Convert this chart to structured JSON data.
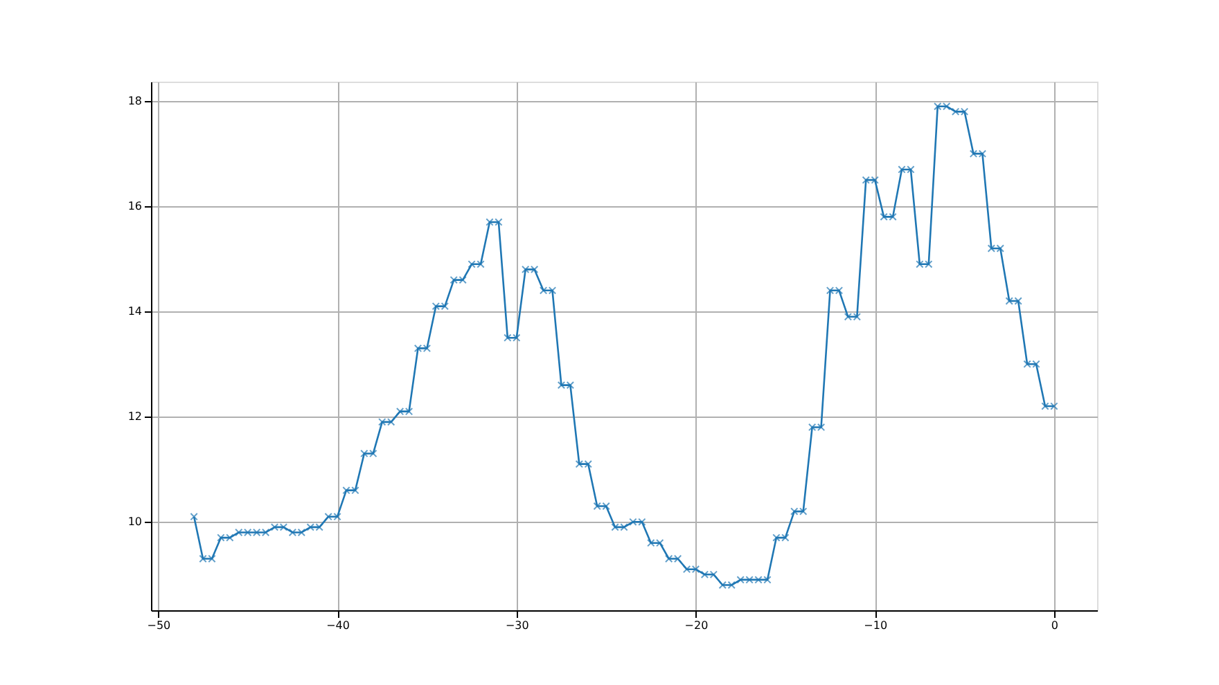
{
  "chart_data": {
    "type": "line",
    "x": [
      -48,
      -47.5,
      -47,
      -46.5,
      -46,
      -45.5,
      -45,
      -44.5,
      -44,
      -43.5,
      -43,
      -42.5,
      -42,
      -41.5,
      -41,
      -40.5,
      -40,
      -39.5,
      -39,
      -38.5,
      -38,
      -37.5,
      -37,
      -36.5,
      -36,
      -35.5,
      -35,
      -34.5,
      -34,
      -33.5,
      -33,
      -32.5,
      -32,
      -31.5,
      -31,
      -30.5,
      -30,
      -29.5,
      -29,
      -28.5,
      -28,
      -27.5,
      -27,
      -26.5,
      -26,
      -25.5,
      -25,
      -24.5,
      -24,
      -23.5,
      -23,
      -22.5,
      -22,
      -21.5,
      -21,
      -20.5,
      -20,
      -19.5,
      -19,
      -18.5,
      -18,
      -17.5,
      -17,
      -16.5,
      -16,
      -15.5,
      -15,
      -14.5,
      -14,
      -13.5,
      -13,
      -12.5,
      -12,
      -11.5,
      -11,
      -10.5,
      -10,
      -9.5,
      -9,
      -8.5,
      -8,
      -7.5,
      -7,
      -6.5,
      -6,
      -5.5,
      -5,
      -4.5,
      -4,
      -3.5,
      -3,
      -2.5,
      -2,
      -1.5,
      -1,
      -0.5,
      0
    ],
    "series": [
      {
        "color": "#1f77b4",
        "values": [
          10.1,
          9.3,
          9.3,
          9.7,
          9.7,
          9.8,
          9.8,
          9.8,
          9.8,
          9.9,
          9.9,
          9.8,
          9.8,
          9.9,
          9.9,
          10.1,
          10.1,
          10.6,
          10.6,
          11.3,
          11.3,
          11.9,
          11.9,
          12.1,
          12.1,
          13.3,
          13.3,
          14.1,
          14.1,
          14.6,
          14.6,
          14.9,
          14.9,
          15.7,
          15.7,
          13.5,
          13.5,
          14.8,
          14.8,
          14.4,
          14.4,
          12.6,
          12.6,
          11.1,
          11.1,
          10.3,
          10.3,
          9.9,
          9.9,
          10.0,
          10.0,
          9.6,
          9.6,
          9.3,
          9.3,
          9.1,
          9.1,
          9.0,
          9.0,
          8.8,
          8.8,
          8.9,
          8.9,
          8.9,
          8.9,
          9.7,
          9.7,
          10.2,
          10.2,
          11.8,
          11.8,
          14.4,
          14.4,
          13.9,
          13.9,
          16.5,
          16.5,
          15.8,
          15.8,
          16.7,
          16.7,
          14.9,
          14.9,
          17.9,
          17.9,
          17.8,
          17.8,
          17.0,
          17.0,
          15.2,
          15.2,
          14.2,
          14.2,
          13.0,
          13.0,
          12.2,
          12.2
        ]
      }
    ],
    "xlim": [
      -50.4,
      2.4
    ],
    "ylim": [
      8.32,
      18.37
    ],
    "xticks": [
      -50,
      -40,
      -30,
      -20,
      -10,
      0
    ],
    "yticks": [
      10,
      12,
      14,
      16,
      18
    ],
    "grid": true,
    "marker": "cross",
    "line_style": "solid"
  }
}
